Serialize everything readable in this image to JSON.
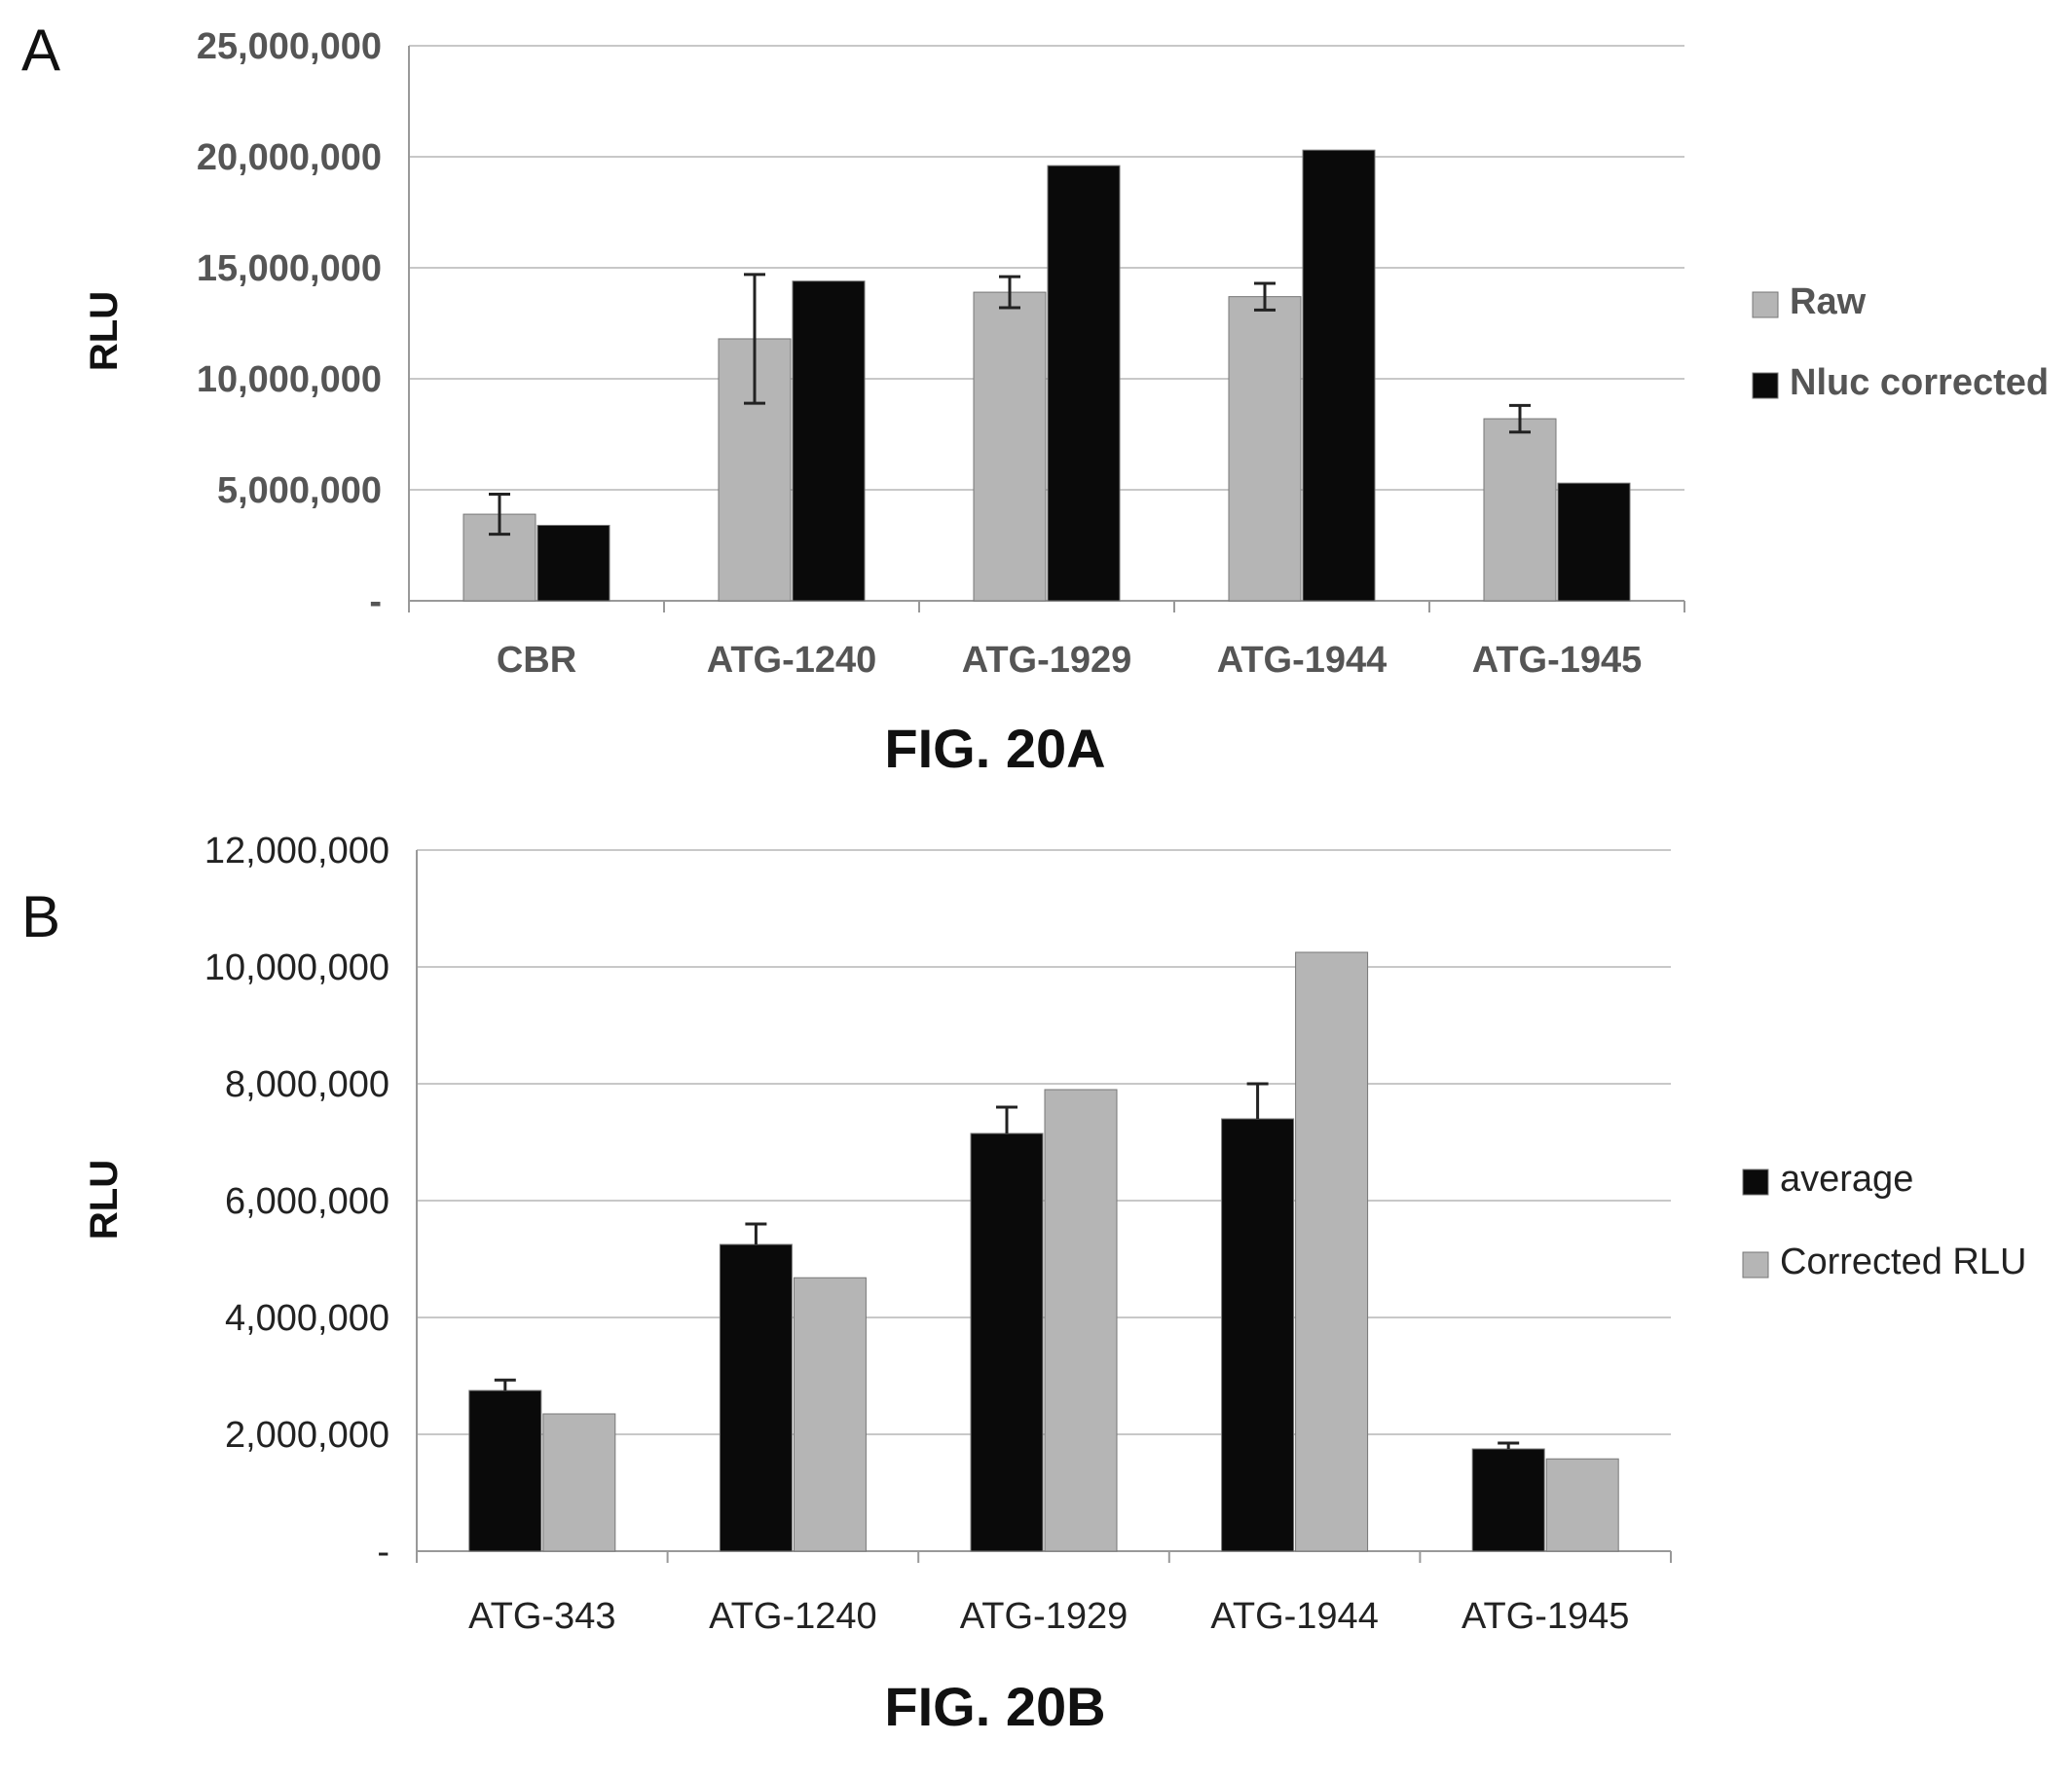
{
  "panels": {
    "a": {
      "letter": "A",
      "caption": "FIG. 20A"
    },
    "b": {
      "letter": "B",
      "caption": "FIG. 20B"
    }
  },
  "colors": {
    "light_bar": "#b5b5b5",
    "dark_bar": "#0a0a0a",
    "grid": "#c8c8c8",
    "axis": "#999999"
  },
  "chart_data": [
    {
      "type": "bar",
      "title": "",
      "xlabel": "",
      "ylabel": "RLU",
      "ylim": [
        0,
        25000000
      ],
      "yticks": [
        0,
        5000000,
        10000000,
        15000000,
        20000000,
        25000000
      ],
      "ytick_labels": [
        "-",
        "5,000,000",
        "10,000,000",
        "15,000,000",
        "20,000,000",
        "25,000,000"
      ],
      "grid": true,
      "legend_position": "right",
      "categories": [
        "CBR",
        "ATG-1240",
        "ATG-1929",
        "ATG-1944",
        "ATG-1945"
      ],
      "series": [
        {
          "name": "Raw",
          "color": "#b5b5b5",
          "values": [
            3900000,
            11800000,
            13900000,
            13700000,
            8200000
          ],
          "errors": [
            900000,
            2900000,
            700000,
            600000,
            600000
          ]
        },
        {
          "name": "Nluc corrected",
          "color": "#0a0a0a",
          "values": [
            3400000,
            14400000,
            19600000,
            20300000,
            5300000
          ]
        }
      ]
    },
    {
      "type": "bar",
      "title": "",
      "xlabel": "",
      "ylabel": "RLU",
      "ylim": [
        0,
        12000000
      ],
      "yticks": [
        0,
        2000000,
        4000000,
        6000000,
        8000000,
        10000000,
        12000000
      ],
      "ytick_labels": [
        "-",
        "2,000,000",
        "4,000,000",
        "6,000,000",
        "8,000,000",
        "10,000,000",
        "12,000,000"
      ],
      "grid": true,
      "legend_position": "right",
      "categories": [
        "ATG-343",
        "ATG-1240",
        "ATG-1929",
        "ATG-1944",
        "ATG-1945"
      ],
      "series": [
        {
          "name": "average",
          "color": "#0a0a0a",
          "values": [
            2750000,
            5250000,
            7150000,
            7400000,
            1750000
          ],
          "errors": [
            180000,
            350000,
            450000,
            600000,
            100000
          ]
        },
        {
          "name": "Corrected RLU",
          "color": "#b5b5b5",
          "values": [
            2350000,
            4680000,
            7900000,
            10250000,
            1580000
          ]
        }
      ]
    }
  ]
}
